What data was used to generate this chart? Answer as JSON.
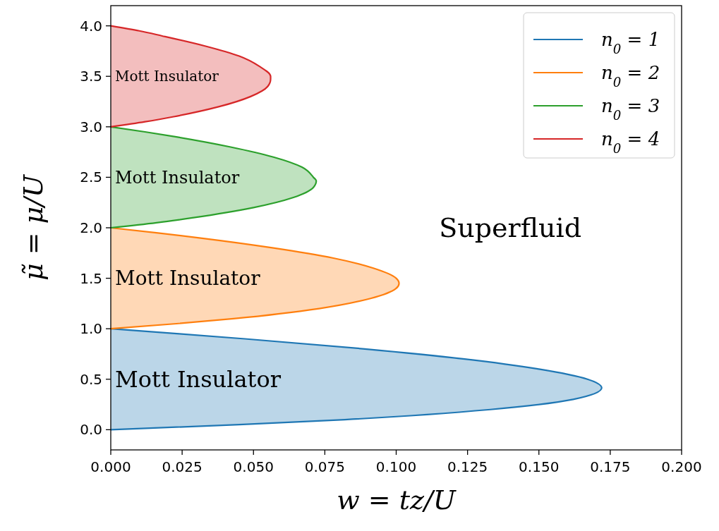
{
  "chart_data": {
    "type": "area",
    "xlabel": "w = tz/U",
    "ylabel": "μ̃ = μ/U",
    "xlim": [
      0,
      0.2
    ],
    "xticks": [
      {
        "value": 0,
        "label": "0.000"
      },
      {
        "value": 0.025,
        "label": "0.025"
      },
      {
        "value": 0.05,
        "label": "0.050"
      },
      {
        "value": 0.075,
        "label": "0.075"
      },
      {
        "value": 0.1,
        "label": "0.100"
      },
      {
        "value": 0.125,
        "label": "0.125"
      },
      {
        "value": 0.15,
        "label": "0.150"
      },
      {
        "value": 0.175,
        "label": "0.175"
      },
      {
        "value": 0.2,
        "label": "0.200"
      }
    ],
    "ylim": [
      -0.2,
      4.2
    ],
    "yticks": [
      {
        "value": 0,
        "label": "0.0"
      },
      {
        "value": 0.5,
        "label": "0.5"
      },
      {
        "value": 1,
        "label": "1.0"
      },
      {
        "value": 1.5,
        "label": "1.5"
      },
      {
        "value": 2,
        "label": "2.0"
      },
      {
        "value": 2.5,
        "label": "2.5"
      },
      {
        "value": 3,
        "label": "3.0"
      },
      {
        "value": 3.5,
        "label": "3.5"
      },
      {
        "value": 4,
        "label": "4.0"
      }
    ],
    "grid": false,
    "legend": "top right",
    "series": [
      {
        "name": "n$_{0}$ = 1",
        "color": "#1f77b4",
        "x": [
          0,
          0.045,
          0.082,
          0.133,
          0.162,
          0.172,
          0.167,
          0.15,
          0.124,
          0.089,
          0.047,
          0.024,
          0
        ],
        "values": [
          0,
          0.05,
          0.1,
          0.2,
          0.3,
          0.414,
          0.5,
          0.6,
          0.7,
          0.8,
          0.9,
          0.95,
          1
        ]
      },
      {
        "name": "n$_{0}$ = 2",
        "color": "#ff7f0e",
        "x": [
          0,
          0.023,
          0.043,
          0.073,
          0.091,
          0.1,
          0.101,
          0.1,
          0.092,
          0.078,
          0.057,
          0.031,
          0.016,
          0
        ],
        "values": [
          1,
          1.05,
          1.1,
          1.2,
          1.3,
          1.4,
          1.449,
          1.5,
          1.6,
          1.7,
          1.8,
          1.9,
          1.95,
          2
        ]
      },
      {
        "name": "n$_{0}$ = 3",
        "color": "#2ca02c",
        "x": [
          0,
          0.016,
          0.029,
          0.05,
          0.064,
          0.071,
          0.072,
          0.071,
          0.067,
          0.057,
          0.042,
          0.023,
          0.012,
          0
        ],
        "values": [
          2,
          2.05,
          2.1,
          2.2,
          2.3,
          2.4,
          2.464,
          2.5,
          2.6,
          2.7,
          2.8,
          2.9,
          2.95,
          3
        ]
      },
      {
        "name": "n$_{0}$ = 4",
        "color": "#d62728",
        "x": [
          0,
          0.012,
          0.022,
          0.038,
          0.049,
          0.055,
          0.056,
          0.056,
          0.052,
          0.045,
          0.033,
          0.018,
          0.01,
          0
        ],
        "values": [
          3,
          3.05,
          3.1,
          3.2,
          3.3,
          3.4,
          3.472,
          3.5,
          3.6,
          3.7,
          3.8,
          3.9,
          3.95,
          4
        ]
      }
    ],
    "annotations": [
      "Mott Insulator",
      "Mott Insulator",
      "Mott Insulator",
      "Mott Insulator",
      "Superfluid"
    ]
  }
}
